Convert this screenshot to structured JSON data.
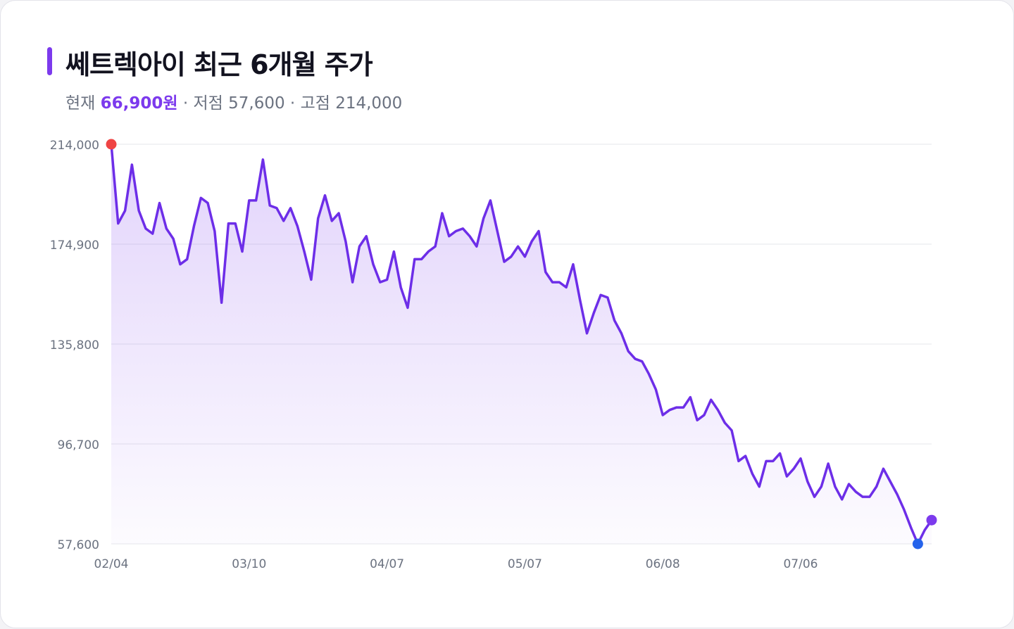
{
  "header": {
    "title": "쎄트렉아이 최근 6개월 주가",
    "current_label": "현재",
    "current_value": "66,900원",
    "sep1": " · ",
    "low_label": "저점",
    "low_value": "57,600",
    "sep2": " · ",
    "high_label": "고점",
    "high_value": "214,000"
  },
  "colors": {
    "line": "#6d2ee8",
    "fill_top": "#7c3aed",
    "high_marker": "#ef4444",
    "low_marker": "#2563eb",
    "last_marker": "#7c3aed",
    "grid": "#e5e7eb",
    "axis_text": "#6b7280"
  },
  "chart_data": {
    "type": "area",
    "title": "쎄트렉아이 최근 6개월 주가",
    "xlabel": "",
    "ylabel": "",
    "ylim": [
      57600,
      214000
    ],
    "y_ticks": [
      214000,
      174900,
      135800,
      96700,
      57600
    ],
    "y_tick_labels": [
      "214,000",
      "174,900",
      "135,800",
      "96,700",
      "57,600"
    ],
    "x_tick_labels": [
      "02/04",
      "03/10",
      "04/07",
      "05/07",
      "06/08",
      "07/06"
    ],
    "x_tick_index": [
      0,
      20,
      40,
      60,
      80,
      100
    ],
    "grid": true,
    "markers": {
      "high_index": 0,
      "low_index": 117,
      "last_index": 119
    },
    "values": [
      214000,
      183000,
      188000,
      206000,
      188000,
      181000,
      179000,
      191000,
      181000,
      177000,
      167000,
      169000,
      182000,
      193000,
      191000,
      180000,
      152000,
      183000,
      183000,
      172000,
      192000,
      192000,
      208000,
      190000,
      189000,
      184000,
      189000,
      182000,
      172000,
      161000,
      185000,
      194000,
      184000,
      187000,
      176000,
      160000,
      174000,
      178000,
      167000,
      160000,
      161000,
      172000,
      158000,
      150000,
      169000,
      169000,
      172000,
      174000,
      187000,
      178000,
      180000,
      181000,
      178000,
      174000,
      185000,
      192000,
      180000,
      168000,
      170000,
      174000,
      170000,
      176000,
      180000,
      164000,
      160000,
      160000,
      158000,
      167000,
      153000,
      140000,
      148000,
      155000,
      154000,
      145000,
      140000,
      133000,
      130000,
      129000,
      124000,
      118000,
      108000,
      110000,
      111000,
      111000,
      115000,
      106000,
      108000,
      114000,
      110000,
      105000,
      102000,
      90000,
      92000,
      85000,
      80000,
      90000,
      90000,
      93000,
      84000,
      87000,
      91000,
      82000,
      76000,
      80000,
      89000,
      80000,
      75000,
      81000,
      78000,
      76000,
      76000,
      80000,
      87000,
      82000,
      77000,
      71000,
      64000,
      57600,
      63000,
      66900
    ]
  }
}
